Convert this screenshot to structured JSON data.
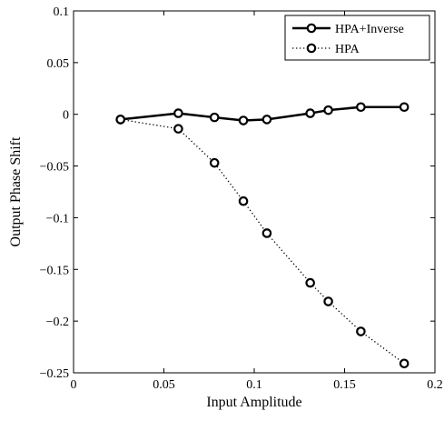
{
  "chart_data": {
    "type": "line",
    "title": "",
    "xlabel": "Input Amplitude",
    "ylabel": "Output Phase Shift",
    "xlim": [
      0,
      0.2
    ],
    "ylim": [
      -0.25,
      0.1
    ],
    "xticks": [
      0,
      0.05,
      0.1,
      0.15,
      0.2
    ],
    "xtick_labels": [
      "0",
      "0.05",
      "0.1",
      "0.15",
      "0.2"
    ],
    "yticks": [
      0.1,
      0.05,
      0,
      -0.05,
      -0.1,
      -0.15,
      -0.2,
      -0.25
    ],
    "ytick_labels": [
      "0.1",
      "0.05",
      "0",
      "−0.05",
      "−0.1",
      "−0.15",
      "−0.2",
      "−0.25"
    ],
    "grid": false,
    "legend_position": "top-right",
    "series": [
      {
        "name": "HPA+Inverse",
        "style": "solid",
        "marker": "circle",
        "color": "#000000",
        "x": [
          0.026,
          0.058,
          0.078,
          0.094,
          0.107,
          0.131,
          0.141,
          0.159,
          0.183
        ],
        "y": [
          -0.005,
          0.001,
          -0.003,
          -0.006,
          -0.005,
          0.001,
          0.004,
          0.007,
          0.007
        ]
      },
      {
        "name": "HPA",
        "style": "dotted",
        "marker": "circle",
        "color": "#000000",
        "x": [
          0.026,
          0.058,
          0.078,
          0.094,
          0.107,
          0.131,
          0.141,
          0.159,
          0.183
        ],
        "y": [
          -0.005,
          -0.014,
          -0.047,
          -0.084,
          -0.115,
          -0.163,
          -0.181,
          -0.21,
          -0.241
        ]
      }
    ]
  }
}
